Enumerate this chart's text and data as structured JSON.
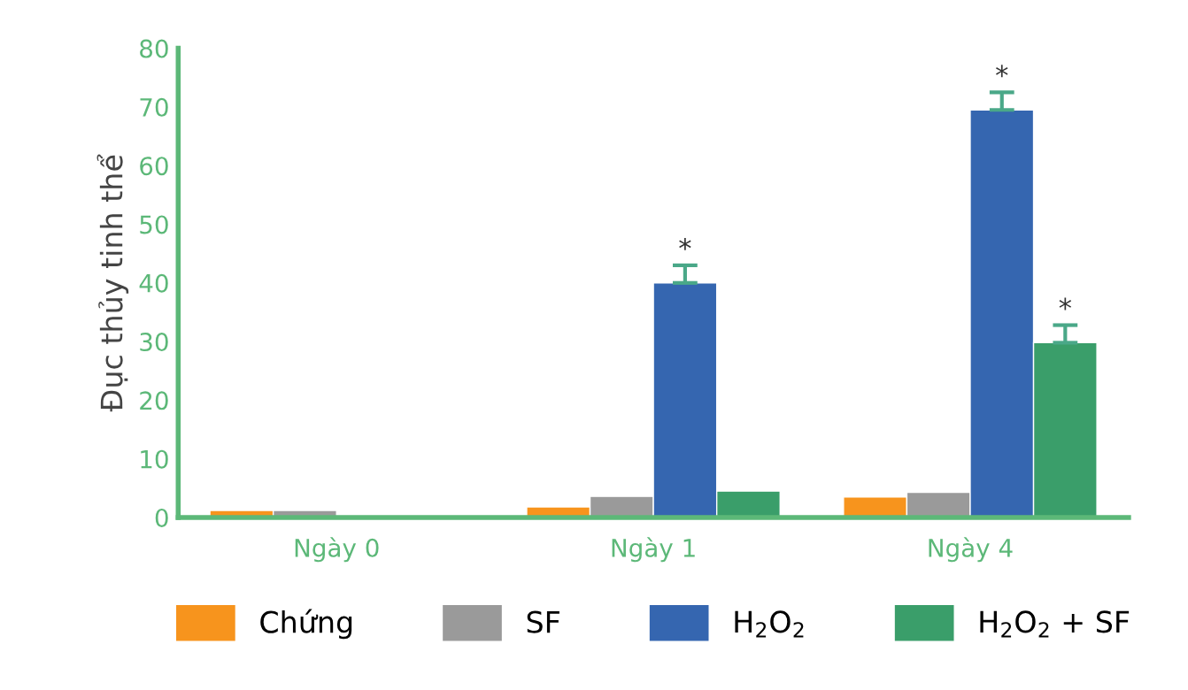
{
  "chart_data": {
    "type": "bar",
    "ylabel": "Đục thủy tinh thể",
    "categories": [
      "Ngày 0",
      "Ngày 1",
      "Ngày 4"
    ],
    "series": [
      {
        "name": "Chứng",
        "color": "#f7941d",
        "values": [
          1.2,
          1.8,
          3.5
        ]
      },
      {
        "name": "SF",
        "color": "#9a9a9a",
        "values": [
          1.2,
          3.6,
          4.3
        ]
      },
      {
        "name": "H$_{2}$O$_{2}$",
        "color": "#3566b0",
        "values": [
          null,
          40,
          69.5
        ],
        "errors": [
          null,
          3,
          3
        ]
      },
      {
        "name": "H$_{2}$O$_{2}$ + SF",
        "color": "#3a9e6a",
        "values": [
          null,
          4.5,
          29.8
        ],
        "errors": [
          null,
          null,
          3
        ]
      }
    ],
    "annotations": [
      "*",
      "*",
      "*"
    ],
    "ylim": [
      0,
      80
    ],
    "yticks": [
      0,
      10,
      20,
      30,
      40,
      50,
      60,
      70,
      80
    ],
    "grid": false,
    "legend": "bottom"
  }
}
